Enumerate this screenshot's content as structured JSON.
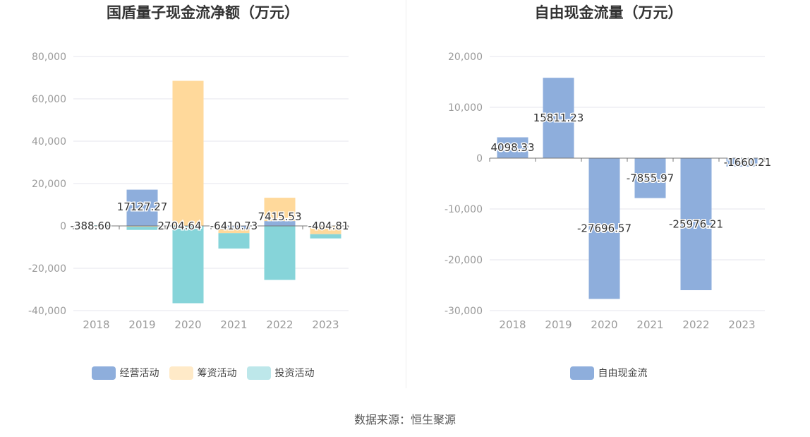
{
  "source": "数据来源：恒生聚源",
  "chart_data": [
    {
      "type": "bar",
      "stacked": true,
      "title": "国盾量子现金流净额（万元）",
      "categories": [
        "2018",
        "2019",
        "2020",
        "2021",
        "2022",
        "2023"
      ],
      "ylim": [
        -40000,
        80000
      ],
      "yticks": [
        80000,
        60000,
        40000,
        20000,
        0,
        -20000,
        -40000
      ],
      "ytick_labels": [
        "80,000",
        "60,000",
        "40,000",
        "20,000",
        "0",
        "-20,000",
        "-40,000"
      ],
      "grid": true,
      "legend_position": "bottom",
      "series": [
        {
          "name": "经营活动",
          "color": "#8eaedc",
          "values": [
            0,
            17127.27,
            0,
            -1600,
            2300,
            0
          ]
        },
        {
          "name": "筹资活动",
          "color": "#ffd99b",
          "values": [
            0,
            -400,
            68500,
            -1800,
            11000,
            -3900
          ]
        },
        {
          "name": "投资活动",
          "color": "#86d4d9",
          "values": [
            300,
            -1500,
            -36500,
            -7300,
            -25500,
            -2000
          ]
        }
      ],
      "data_labels": [
        "-388.60",
        "17127.27",
        "2704.64",
        "-6410.73",
        "7415.53",
        "-404.81"
      ]
    },
    {
      "type": "bar",
      "title": "自由现金流量（万元）",
      "categories": [
        "2018",
        "2019",
        "2020",
        "2021",
        "2022",
        "2023"
      ],
      "ylim": [
        -30000,
        20000
      ],
      "yticks": [
        20000,
        10000,
        0,
        -10000,
        -20000,
        -30000
      ],
      "ytick_labels": [
        "20,000",
        "10,000",
        "0",
        "-10,000",
        "-20,000",
        "-30,000"
      ],
      "grid": true,
      "legend_position": "bottom",
      "series": [
        {
          "name": "自由现金流",
          "color": "#8eaedc",
          "values": [
            4098.33,
            15811.23,
            -27696.57,
            -7855.97,
            -25976.21,
            -1660.21
          ]
        }
      ],
      "data_labels": [
        "4098.33",
        "15811.23",
        "-27696.57",
        "-7855.97",
        "-25976.21",
        "-1660.21"
      ]
    }
  ]
}
